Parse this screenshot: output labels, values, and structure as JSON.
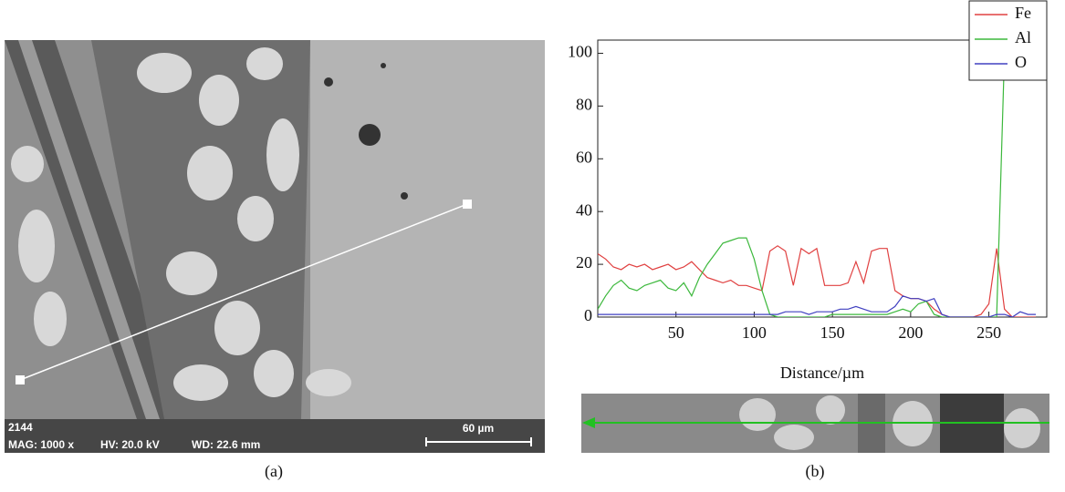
{
  "chart_data": {
    "type": "line",
    "xlabel": "Distance/µm",
    "x": [
      0,
      5,
      10,
      15,
      20,
      25,
      30,
      35,
      40,
      45,
      50,
      55,
      60,
      65,
      70,
      75,
      80,
      85,
      90,
      95,
      100,
      105,
      110,
      115,
      120,
      125,
      130,
      135,
      140,
      145,
      150,
      155,
      160,
      165,
      170,
      175,
      180,
      185,
      190,
      195,
      200,
      205,
      210,
      215,
      220,
      225,
      230,
      235,
      240,
      245,
      250,
      255,
      260,
      265,
      270,
      275,
      280
    ],
    "series": [
      {
        "name": "Fe",
        "color": "#e04040",
        "values": [
          24,
          22,
          19,
          18,
          20,
          19,
          20,
          18,
          19,
          20,
          18,
          19,
          21,
          18,
          15,
          14,
          13,
          14,
          12,
          12,
          11,
          10,
          25,
          27,
          25,
          12,
          26,
          24,
          26,
          12,
          12,
          12,
          13,
          21,
          13,
          25,
          26,
          26,
          10,
          8,
          7,
          7,
          6,
          3,
          1,
          0,
          0,
          0,
          0,
          1,
          5,
          26,
          3,
          0,
          0,
          0,
          0
        ]
      },
      {
        "name": "Al",
        "color": "#3cb83c",
        "values": [
          3,
          8,
          12,
          14,
          11,
          10,
          12,
          13,
          14,
          11,
          10,
          13,
          8,
          15,
          20,
          24,
          28,
          29,
          30,
          30,
          22,
          10,
          1,
          0,
          0,
          0,
          0,
          0,
          0,
          0,
          1,
          1,
          1,
          1,
          1,
          1,
          1,
          1,
          2,
          3,
          2,
          5,
          6,
          1,
          0,
          0,
          0,
          0,
          0,
          0,
          0,
          0,
          100,
          null,
          null,
          null,
          null
        ]
      },
      {
        "name": "O",
        "color": "#4040c0",
        "values": [
          1,
          1,
          1,
          1,
          1,
          1,
          1,
          1,
          1,
          1,
          1,
          1,
          1,
          1,
          1,
          1,
          1,
          1,
          1,
          1,
          1,
          1,
          1,
          1,
          2,
          2,
          2,
          1,
          2,
          2,
          2,
          3,
          3,
          4,
          3,
          2,
          2,
          2,
          4,
          8,
          7,
          7,
          6,
          7,
          1,
          0,
          0,
          0,
          0,
          0,
          0,
          1,
          1,
          0,
          2,
          1,
          1
        ]
      }
    ],
    "xlim": [
      0,
      287
    ],
    "xticks": [
      50,
      100,
      150,
      200,
      250
    ],
    "ylim": [
      0,
      105
    ],
    "yticks": [
      0,
      20,
      40,
      60,
      80,
      100
    ],
    "legend": "top-right"
  },
  "panels": {
    "a": "(a)",
    "b": "(b)"
  },
  "sem_info": {
    "id": "2144",
    "mag": "MAG: 1000 x",
    "hv": "HV: 20.0 kV",
    "wd": "WD: 22.6 mm",
    "scale": "60 µm"
  }
}
